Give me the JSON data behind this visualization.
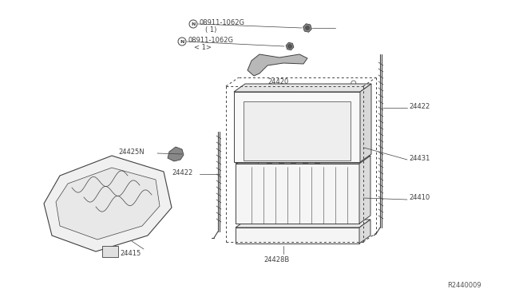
{
  "background_color": "#ffffff",
  "line_color": "#404040",
  "fig_width": 6.4,
  "fig_height": 3.72,
  "dpi": 100,
  "ref_number": "R2440009",
  "labels": {
    "nut_top_label": "08911-1062G",
    "nut_top_sub": "( 1)",
    "nut_bot_label": "08911-1062G",
    "nut_bot_sub": "< 1>",
    "24420": "24420",
    "24422_right": "24422",
    "24425N": "24425N",
    "24422_left": "24422",
    "24431": "24431",
    "24410": "24410",
    "24415": "24415",
    "24428": "24428B"
  }
}
